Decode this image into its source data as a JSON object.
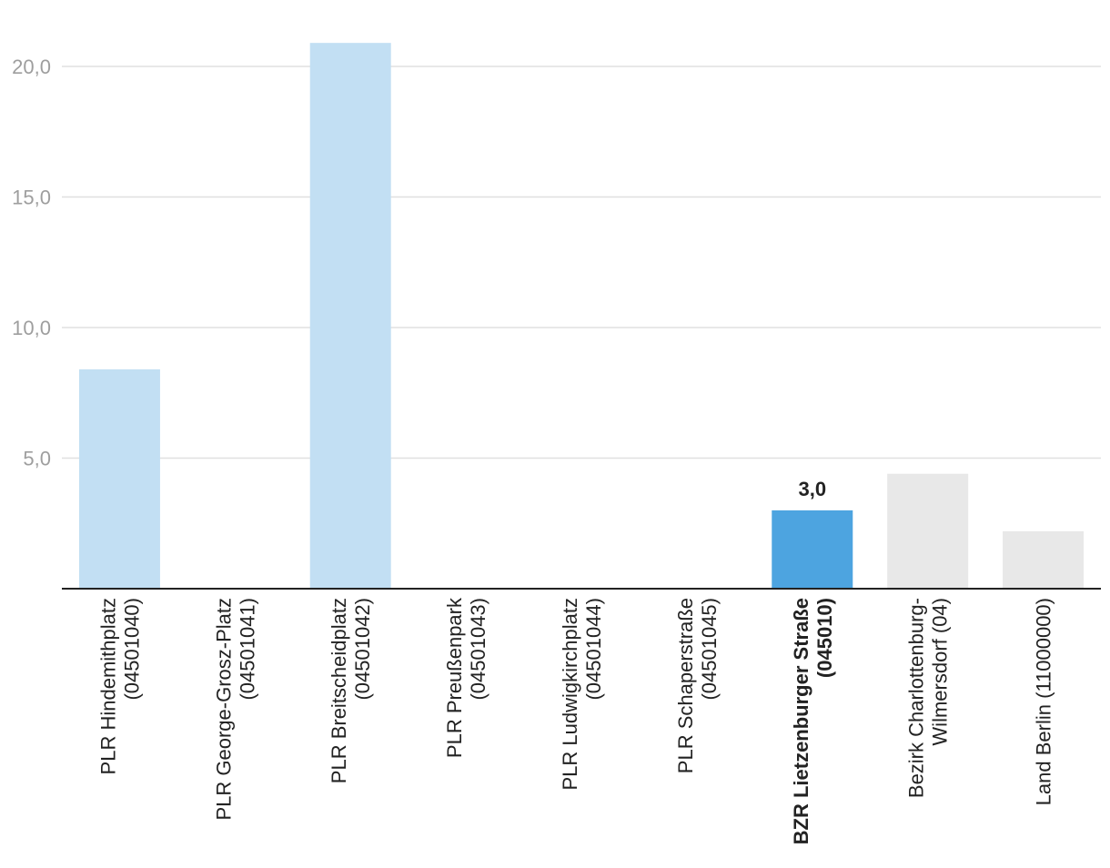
{
  "chart_data": {
    "type": "bar",
    "categories": [
      [
        "PLR Hindemithplatz",
        "(04501040)"
      ],
      [
        "PLR George-Grosz-Platz",
        "(04501041)"
      ],
      [
        "PLR Breitscheidplatz",
        "(04501042)"
      ],
      [
        "PLR Preußenpark",
        "(04501043)"
      ],
      [
        "PLR Ludwigkirchplatz",
        "(04501044)"
      ],
      [
        "PLR Schaperstraße",
        "(04501045)"
      ],
      [
        "BZR Lietzenburger Straße",
        "(045010)"
      ],
      [
        "Bezirk Charlottenburg-",
        "Wilmersdorf (04)"
      ],
      [
        "Land Berlin (11000000)"
      ]
    ],
    "values": [
      8.4,
      0,
      20.9,
      0,
      0,
      0,
      3.0,
      4.4,
      2.2
    ],
    "bar_colors": [
      "#c2dff3",
      "#c2dff3",
      "#c2dff3",
      "#c2dff3",
      "#c2dff3",
      "#c2dff3",
      "#4da4e0",
      "#e8e8e8",
      "#e8e8e8"
    ],
    "highlight_index": 6,
    "data_labels": [
      {
        "index": 6,
        "text": "3,0"
      }
    ],
    "yticks": [
      {
        "value": 5,
        "label": "5,0"
      },
      {
        "value": 10,
        "label": "10,0"
      },
      {
        "value": 15,
        "label": "15,0"
      },
      {
        "value": 20,
        "label": "20,0"
      }
    ],
    "ylim": [
      0,
      22
    ],
    "grid": true,
    "title": "",
    "xlabel": "",
    "ylabel": ""
  }
}
